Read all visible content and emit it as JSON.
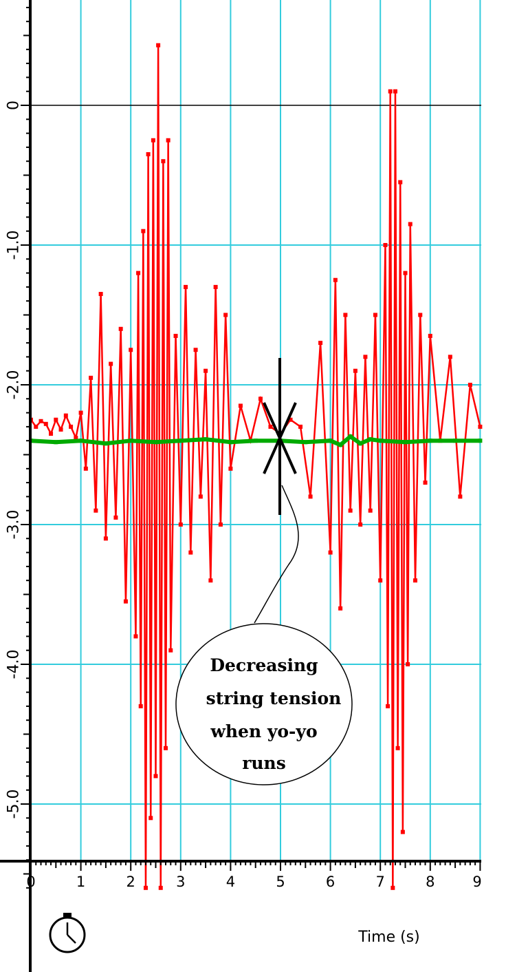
{
  "chart_data": {
    "type": "line",
    "title": "",
    "xlabel": "Time (s)",
    "ylabel": "",
    "xlim": [
      0,
      9
    ],
    "ylim": [
      -5.6,
      0.7
    ],
    "x_ticks": [
      "0",
      "1",
      "2",
      "3",
      "4",
      "5",
      "6",
      "7",
      "8",
      "9"
    ],
    "y_ticks": [
      {
        "value": 0,
        "label": "0"
      },
      {
        "value": -1,
        "label": "-1.0"
      },
      {
        "value": -2,
        "label": "-2.0"
      },
      {
        "value": -3,
        "label": "-3.0"
      },
      {
        "value": -4,
        "label": "-4.0"
      },
      {
        "value": -5,
        "label": "-5.0"
      }
    ],
    "grid": true,
    "colors": {
      "grid": "#33ccdd",
      "series_red": "#ff0000",
      "series_green": "#00aa00",
      "zero_line": "#000000"
    },
    "series": [
      {
        "color": "#ff0000",
        "x": [
          0.0,
          0.1,
          0.2,
          0.3,
          0.4,
          0.5,
          0.6,
          0.7,
          0.8,
          0.9,
          1.0,
          1.1,
          1.2,
          1.3,
          1.4,
          1.5,
          1.6,
          1.7,
          1.8,
          1.9,
          2.0,
          2.1,
          2.15,
          2.2,
          2.25,
          2.3,
          2.35,
          2.4,
          2.45,
          2.5,
          2.55,
          2.6,
          2.65,
          2.7,
          2.75,
          2.8,
          2.9,
          3.0,
          3.1,
          3.2,
          3.3,
          3.4,
          3.5,
          3.6,
          3.7,
          3.8,
          3.9,
          4.0,
          4.2,
          4.4,
          4.6,
          4.8,
          5.0,
          5.2,
          5.4,
          5.6,
          5.8,
          6.0,
          6.1,
          6.2,
          6.3,
          6.4,
          6.5,
          6.6,
          6.7,
          6.8,
          6.9,
          7.0,
          7.1,
          7.15,
          7.2,
          7.25,
          7.3,
          7.35,
          7.4,
          7.45,
          7.5,
          7.55,
          7.6,
          7.7,
          7.8,
          7.9,
          8.0,
          8.2,
          8.4,
          8.6,
          8.8,
          9.0
        ],
        "values": [
          -2.25,
          -2.3,
          -2.26,
          -2.28,
          -2.35,
          -2.25,
          -2.32,
          -2.22,
          -2.3,
          -2.38,
          -2.2,
          -2.6,
          -1.95,
          -2.9,
          -1.35,
          -3.1,
          -1.85,
          -2.95,
          -1.6,
          -3.55,
          -1.75,
          -3.8,
          -1.2,
          -4.3,
          -0.9,
          -5.6,
          -0.35,
          -5.1,
          -0.25,
          -4.8,
          0.43,
          -5.6,
          -0.4,
          -4.6,
          -0.25,
          -3.9,
          -1.65,
          -3.0,
          -1.3,
          -3.2,
          -1.75,
          -2.8,
          -1.9,
          -3.4,
          -1.3,
          -3.0,
          -1.5,
          -2.6,
          -2.15,
          -2.4,
          -2.1,
          -2.3,
          -2.35,
          -2.25,
          -2.3,
          -2.8,
          -1.7,
          -3.2,
          -1.25,
          -3.6,
          -1.5,
          -2.9,
          -1.9,
          -3.0,
          -1.8,
          -2.9,
          -1.5,
          -3.4,
          -1.0,
          -4.3,
          0.1,
          -5.6,
          0.1,
          -4.6,
          -0.55,
          -5.2,
          -1.2,
          -4.0,
          -0.85,
          -3.4,
          -1.5,
          -2.7,
          -1.65,
          -2.4,
          -1.8,
          -2.8,
          -2.0,
          -2.3
        ]
      },
      {
        "color": "#00aa00",
        "x": [
          0.0,
          0.5,
          1.0,
          1.5,
          2.0,
          2.5,
          3.0,
          3.5,
          4.0,
          4.5,
          5.0,
          5.5,
          6.0,
          6.2,
          6.4,
          6.6,
          6.8,
          7.0,
          7.5,
          8.0,
          8.5,
          9.0
        ],
        "values": [
          -2.4,
          -2.41,
          -2.4,
          -2.42,
          -2.4,
          -2.41,
          -2.4,
          -2.39,
          -2.41,
          -2.4,
          -2.4,
          -2.41,
          -2.4,
          -2.43,
          -2.37,
          -2.42,
          -2.39,
          -2.4,
          -2.41,
          -2.4,
          -2.4,
          -2.4
        ]
      }
    ],
    "annotations": [
      {
        "text_lines": [
          "Decreasing",
          "string tension",
          "when yo-yo",
          "runs"
        ],
        "points_to": {
          "x": 5.0,
          "y": -2.4
        }
      }
    ]
  }
}
